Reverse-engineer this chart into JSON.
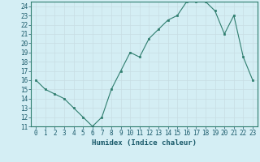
{
  "x": [
    0,
    1,
    2,
    3,
    4,
    5,
    6,
    7,
    8,
    9,
    10,
    11,
    12,
    13,
    14,
    15,
    16,
    17,
    18,
    19,
    20,
    21,
    22,
    23
  ],
  "y": [
    16,
    15,
    14.5,
    14,
    13,
    12,
    11,
    12,
    15,
    17,
    19,
    18.5,
    20.5,
    21.5,
    22.5,
    23,
    24.5,
    24.5,
    24.5,
    23.5,
    21,
    23,
    18.5,
    16
  ],
  "line_color": "#2e7d6e",
  "marker": "s",
  "marker_size": 2,
  "bg_color": "#d4eef4",
  "grid_major_color": "#c8dde4",
  "grid_minor_color": "#daedf3",
  "xlabel": "Humidex (Indice chaleur)",
  "xlim": [
    -0.5,
    23.5
  ],
  "ylim": [
    11,
    24.5
  ],
  "yticks": [
    11,
    12,
    13,
    14,
    15,
    16,
    17,
    18,
    19,
    20,
    21,
    22,
    23,
    24
  ],
  "xtick_labels": [
    "0",
    "1",
    "2",
    "3",
    "4",
    "5",
    "6",
    "7",
    "8",
    "9",
    "10",
    "11",
    "12",
    "13",
    "14",
    "15",
    "16",
    "17",
    "18",
    "19",
    "20",
    "21",
    "22",
    "23"
  ],
  "label_fontsize": 6.5,
  "tick_fontsize": 5.5
}
